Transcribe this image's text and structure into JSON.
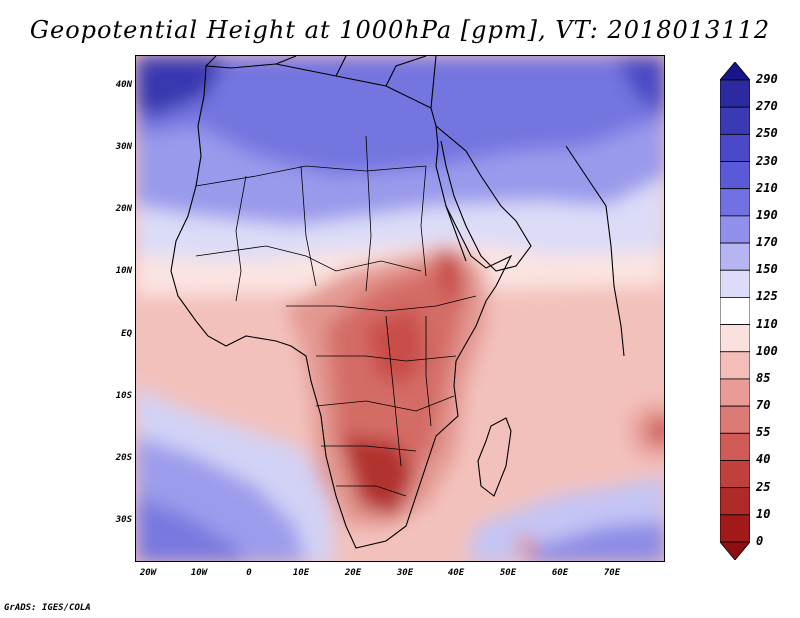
{
  "title": "Geopotential Height at 1000hPa [gpm], VT: 2018013112",
  "map": {
    "region": "Africa, Middle East and Western Indian Ocean",
    "variable": "Geopotential Height at 1000hPa",
    "units": "gpm",
    "lon_range": [
      -23,
      80
    ],
    "lat_range": [
      -36,
      45
    ]
  },
  "y_ticks": [
    "40N",
    "30N",
    "20N",
    "10N",
    "EQ",
    "10S",
    "20S",
    "30S"
  ],
  "x_ticks": [
    "20W",
    "10W",
    "0",
    "10E",
    "20E",
    "30E",
    "40E",
    "50E",
    "60E",
    "70E"
  ],
  "colorbar": {
    "labels": [
      "290",
      "270",
      "250",
      "230",
      "210",
      "190",
      "170",
      "150",
      "125",
      "110",
      "100",
      "85",
      "70",
      "55",
      "40",
      "25",
      "10",
      "0"
    ],
    "colors": [
      "#1a148c",
      "#2b2a9e",
      "#3a3ab5",
      "#4a4ac8",
      "#5a5ad8",
      "#7171e1",
      "#9090ea",
      "#b5b5f2",
      "#dcdcf8",
      "#ffffff",
      "#fbe1de",
      "#f4bdb8",
      "#e99b96",
      "#dc7a75",
      "#cf5a56",
      "#c0403c",
      "#b02a27",
      "#a21919",
      "#8e0f12"
    ]
  },
  "credit": "GrADS: IGES/COLA"
}
